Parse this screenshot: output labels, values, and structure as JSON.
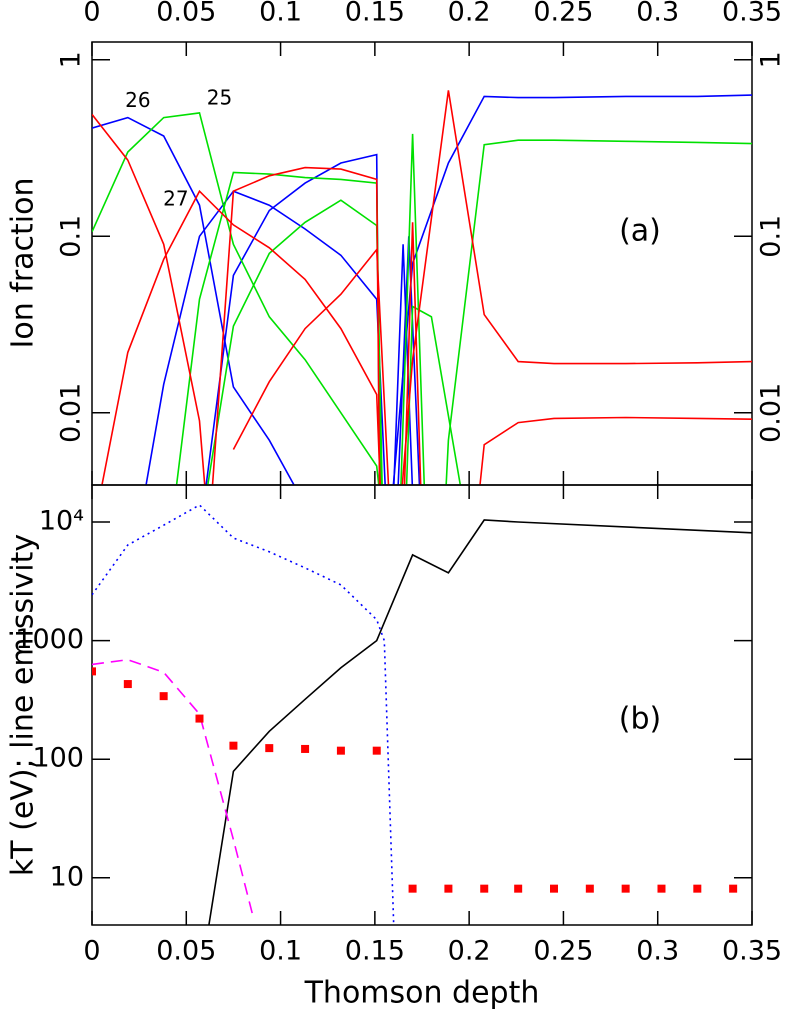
{
  "chart_data": [
    {
      "type": "line",
      "ylabel": "Ion fraction",
      "annotation": "(a)",
      "log_y": true,
      "xlim": [
        0,
        0.35
      ],
      "xticks": [
        0,
        0.05,
        0.1,
        0.15,
        0.2,
        0.25,
        0.3,
        0.35
      ],
      "ylim": [
        0.0039,
        1.26
      ],
      "yticks": [
        0.01,
        0.1,
        1
      ],
      "series": [
        {
          "name": "26",
          "color": "#0000ff",
          "x": [
            0,
            0.019,
            0.038,
            0.057,
            0.075,
            0.094,
            0.113
          ],
          "values": [
            0.41,
            0.47,
            0.37,
            0.15,
            0.014,
            0.007,
            0.003
          ]
        },
        {
          "color": "#0000ff",
          "x": [
            0.019,
            0.038,
            0.057,
            0.075,
            0.094,
            0.113,
            0.132,
            0.151,
            0.158,
            0.165,
            0.172
          ],
          "values": [
            0.001,
            0.0145,
            0.1,
            0.18,
            0.15,
            0.11,
            0.078,
            0.044,
            0.001,
            0.09,
            0.001
          ]
        },
        {
          "color": "#0000ff",
          "x": [
            0.057,
            0.075,
            0.094,
            0.113,
            0.132,
            0.151,
            0.153
          ],
          "values": [
            0.002,
            0.06,
            0.14,
            0.2,
            0.26,
            0.29,
            0.001
          ]
        },
        {
          "color": "#0000ff",
          "x": [
            0.155,
            0.17,
            0.189,
            0.208,
            0.226,
            0.245,
            0.283,
            0.321,
            0.35
          ],
          "values": [
            0.001,
            0.07,
            0.26,
            0.62,
            0.61,
            0.61,
            0.62,
            0.62,
            0.63
          ]
        },
        {
          "color": "#0000ff",
          "x": [
            0.16,
            0.168,
            0.176
          ],
          "values": [
            0.001,
            0.1,
            0.001
          ]
        },
        {
          "name": "25",
          "color": "#00e000",
          "x": [
            0,
            0.019,
            0.038,
            0.057,
            0.075,
            0.094,
            0.113,
            0.132,
            0.151,
            0.158
          ],
          "values": [
            0.106,
            0.3,
            0.47,
            0.5,
            0.09,
            0.035,
            0.02,
            0.01,
            0.005,
            0.001
          ]
        },
        {
          "color": "#00e000",
          "x": [
            0.038,
            0.057,
            0.075,
            0.094,
            0.113,
            0.132,
            0.151,
            0.154
          ],
          "values": [
            0.001,
            0.044,
            0.23,
            0.225,
            0.215,
            0.21,
            0.2,
            0.001
          ]
        },
        {
          "color": "#00e000",
          "x": [
            0.057,
            0.075,
            0.094,
            0.113,
            0.132,
            0.151,
            0.155
          ],
          "values": [
            0.002,
            0.031,
            0.08,
            0.12,
            0.16,
            0.115,
            0.001
          ]
        },
        {
          "color": "#00e000",
          "x": [
            0.162,
            0.17,
            0.178
          ],
          "values": [
            0.001,
            0.38,
            0.001
          ]
        },
        {
          "color": "#00e000",
          "x": [
            0.165,
            0.17,
            0.18,
            0.2
          ],
          "values": [
            0.001,
            0.04,
            0.035,
            0.002
          ]
        },
        {
          "color": "#00e000",
          "x": [
            0.185,
            0.189,
            0.208,
            0.226,
            0.245,
            0.283,
            0.321,
            0.35
          ],
          "values": [
            0.001,
            0.007,
            0.33,
            0.35,
            0.35,
            0.345,
            0.34,
            0.335
          ]
        },
        {
          "name": "27",
          "color": "#ff0000",
          "x": [
            0,
            0.019,
            0.038,
            0.057,
            0.062
          ],
          "values": [
            0.49,
            0.27,
            0.09,
            0.009,
            0.002
          ]
        },
        {
          "color": "#ff0000",
          "x": [
            0,
            0.019,
            0.038,
            0.057,
            0.075,
            0.094,
            0.113,
            0.132,
            0.151,
            0.155
          ],
          "values": [
            0.002,
            0.022,
            0.074,
            0.18,
            0.116,
            0.086,
            0.057,
            0.03,
            0.0127,
            0.001
          ]
        },
        {
          "color": "#ff0000",
          "x": [
            0.062,
            0.075,
            0.094,
            0.113,
            0.132,
            0.151,
            0.153
          ],
          "values": [
            0.002,
            0.18,
            0.22,
            0.245,
            0.24,
            0.21,
            0.001
          ]
        },
        {
          "color": "#ff0000",
          "x": [
            0.075,
            0.094,
            0.113,
            0.132,
            0.151,
            0.16
          ],
          "values": [
            0.0062,
            0.015,
            0.03,
            0.047,
            0.084,
            0.001
          ]
        },
        {
          "color": "#ff0000",
          "x": [
            0.16,
            0.17,
            0.189,
            0.208,
            0.226,
            0.245,
            0.283,
            0.321,
            0.35
          ],
          "values": [
            0.001,
            0.02,
            0.67,
            0.036,
            0.0195,
            0.019,
            0.019,
            0.0192,
            0.0195
          ]
        },
        {
          "color": "#ff0000",
          "x": [
            0.2,
            0.208,
            0.226,
            0.245,
            0.283,
            0.321,
            0.35
          ],
          "values": [
            0.001,
            0.0066,
            0.0088,
            0.0093,
            0.0094,
            0.0093,
            0.0092
          ]
        },
        {
          "color": "#ff0000",
          "x": [
            0.164,
            0.17,
            0.176
          ],
          "values": [
            0.001,
            0.12,
            0.001
          ]
        }
      ]
    },
    {
      "type": "line",
      "ylabel": "kT (eV); line emissivity",
      "xlabel": "Thomson depth",
      "annotation": "(b)",
      "log_y": true,
      "xlim": [
        0,
        0.35
      ],
      "xticks": [
        0,
        0.05,
        0.1,
        0.15,
        0.2,
        0.25,
        0.3,
        0.35
      ],
      "ylim": [
        4,
        20500
      ],
      "yticks": [
        10,
        100,
        1000,
        {
          "value": 10000,
          "label": "10⁴"
        }
      ],
      "series": [
        {
          "color": "#0000ff",
          "style": "dotted",
          "x": [
            0,
            0.019,
            0.038,
            0.057,
            0.075,
            0.094,
            0.113,
            0.132,
            0.151,
            0.155,
            0.16
          ],
          "values": [
            2430,
            6400,
            9400,
            13900,
            7330,
            5600,
            4100,
            2950,
            1500,
            1000,
            4
          ]
        },
        {
          "color": "#000000",
          "style": "solid",
          "x": [
            0.062,
            0.075,
            0.094,
            0.113,
            0.132,
            0.151,
            0.17,
            0.189,
            0.208,
            0.226,
            0.35
          ],
          "values": [
            4,
            79,
            172,
            320,
            590,
            1000,
            5280,
            3730,
            10400,
            10000,
            8100
          ]
        },
        {
          "color": "#ff00ff",
          "style": "dashed",
          "x": [
            0,
            0.019,
            0.038,
            0.057,
            0.075,
            0.085
          ],
          "values": [
            630,
            690,
            540,
            240,
            21,
            5
          ]
        },
        {
          "color": "#ff0000",
          "style": "markers",
          "x": [
            0,
            0.019,
            0.038,
            0.057,
            0.075,
            0.094,
            0.113,
            0.132,
            0.151,
            0.17,
            0.189,
            0.208,
            0.226,
            0.245,
            0.264,
            0.283,
            0.302,
            0.321,
            0.34
          ],
          "values": [
            550,
            430,
            340,
            220,
            130,
            124,
            122,
            118,
            118,
            8.1,
            8.1,
            8.1,
            8.1,
            8.1,
            8.1,
            8.1,
            8.1,
            8.1,
            8.1
          ]
        }
      ]
    }
  ]
}
